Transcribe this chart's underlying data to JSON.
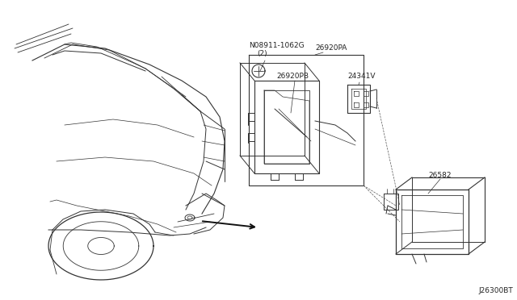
{
  "bg_color": "#ffffff",
  "line_color": "#333333",
  "text_color": "#222222",
  "diagram_code": "J26300BT",
  "label_N": "N08911-1062G",
  "label_N2": "(2)",
  "label_26920PA": "26920PA",
  "label_26920PB": "26920PB",
  "label_24341V": "24341V",
  "label_26582": "26582"
}
